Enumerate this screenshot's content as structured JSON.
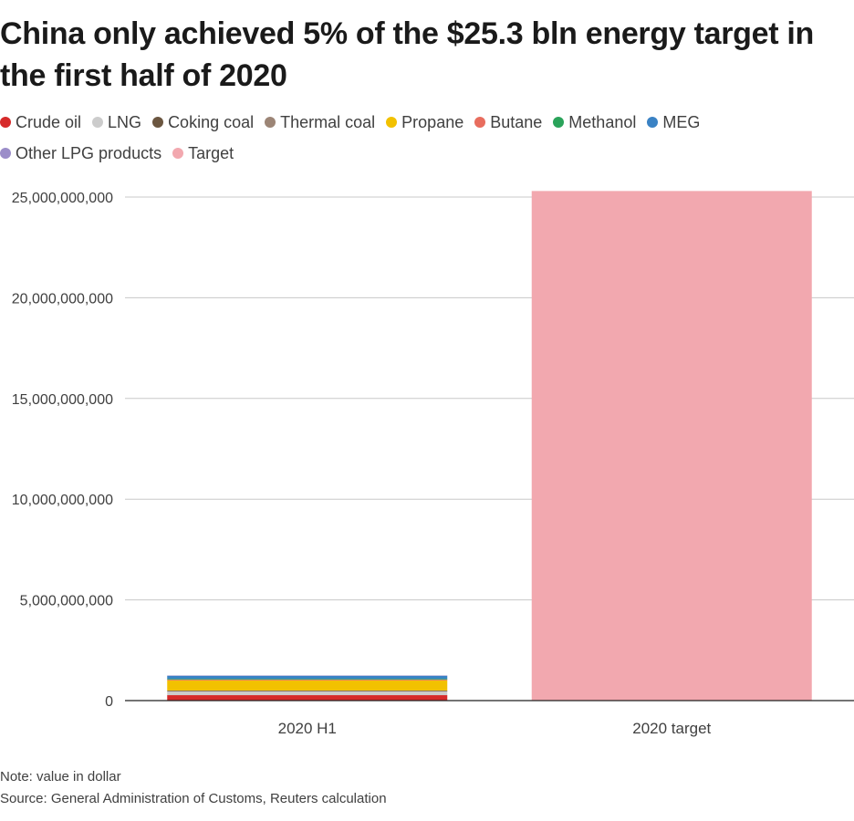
{
  "chart_data": {
    "type": "bar",
    "stacked": true,
    "title": "China only achieved 5% of the $25.3 bln energy target in the first half of 2020",
    "categories": [
      "2020 H1",
      "2020 target"
    ],
    "series": [
      {
        "name": "Crude oil",
        "color": "#d62a2a",
        "values": [
          270000000,
          0
        ]
      },
      {
        "name": "LNG",
        "color": "#cccccc",
        "values": [
          180000000,
          0
        ]
      },
      {
        "name": "Coking coal",
        "color": "#6b5640",
        "values": [
          30000000,
          0
        ]
      },
      {
        "name": "Thermal coal",
        "color": "#9c8576",
        "values": [
          20000000,
          0
        ]
      },
      {
        "name": "Propane",
        "color": "#f2c100",
        "values": [
          500000000,
          0
        ]
      },
      {
        "name": "Butane",
        "color": "#e86d5e",
        "values": [
          40000000,
          0
        ]
      },
      {
        "name": "Methanol",
        "color": "#2aa35a",
        "values": [
          40000000,
          0
        ]
      },
      {
        "name": "MEG",
        "color": "#3a82c4",
        "values": [
          150000000,
          0
        ]
      },
      {
        "name": "Other LPG products",
        "color": "#9b8dc9",
        "values": [
          20000000,
          0
        ]
      },
      {
        "name": "Target",
        "color": "#f2a8af",
        "values": [
          0,
          25300000000
        ]
      }
    ],
    "ylim": [
      0,
      25000000000
    ],
    "yticks": [
      0,
      5000000000,
      10000000000,
      15000000000,
      20000000000,
      25000000000
    ],
    "ytick_labels": [
      "0",
      "5,000,000,000",
      "10,000,000,000",
      "15,000,000,000",
      "20,000,000,000",
      "25,000,000,000"
    ],
    "grid": true,
    "legend_position": "top-left",
    "xlabel": "",
    "ylabel": ""
  },
  "footer": {
    "note": "Note: value in dollar",
    "source": "Source: General Administration of Customs, Reuters calculation"
  }
}
